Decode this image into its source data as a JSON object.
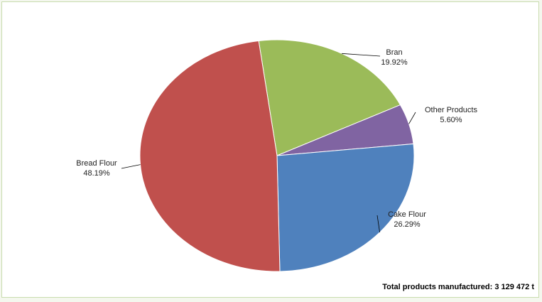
{
  "chart_data": {
    "type": "pie",
    "title": "",
    "slices": [
      {
        "label": "Bran",
        "value": 19.92,
        "value_label": "19.92%",
        "color": "#9bbb59"
      },
      {
        "label": "Other Products",
        "value": 5.6,
        "value_label": "5.60%",
        "color": "#8064a2"
      },
      {
        "label": "Cake Flour",
        "value": 26.29,
        "value_label": "26.29%",
        "color": "#4f81bd"
      },
      {
        "label": "Bread Flour",
        "value": 48.19,
        "value_label": "48.19%",
        "color": "#c0504d"
      }
    ],
    "legend": "none",
    "data_labels": "outside with leader lines"
  },
  "footer": {
    "total_text": "Total products manufactured: 3 129 472 t"
  }
}
